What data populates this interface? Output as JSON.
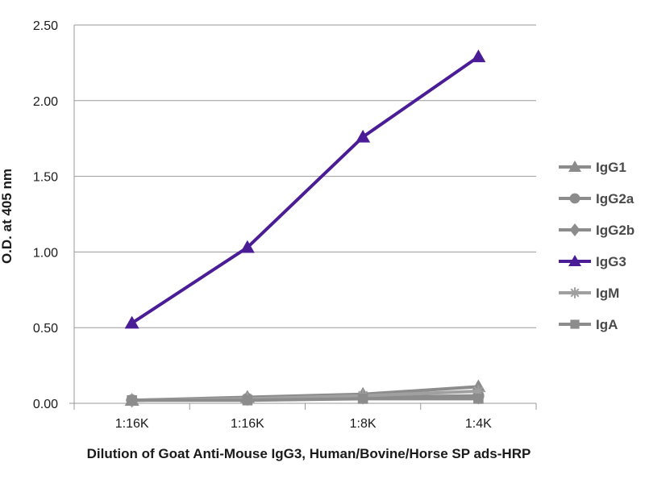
{
  "chart_data": {
    "type": "line",
    "title": "",
    "xlabel": "Dilution of Goat Anti-Mouse IgG3, Human/Bovine/Horse SP ads-HRP",
    "ylabel": "O.D. at 405 nm",
    "categories": [
      "1:16K",
      "1:16K",
      "1:8K",
      "1:4K"
    ],
    "ylim": [
      0,
      2.5
    ],
    "yticks": [
      0,
      0.5,
      1.0,
      1.5,
      2.0,
      2.5
    ],
    "ytick_labels": [
      "0.00",
      "0.50",
      "1.00",
      "1.50",
      "2.00",
      "2.50"
    ],
    "grid": true,
    "legend_position": "right",
    "series": [
      {
        "name": "IgG1",
        "values": [
          0.02,
          0.04,
          0.06,
          0.11
        ],
        "color": "#8c8c8c",
        "marker": "triangle"
      },
      {
        "name": "IgG2a",
        "values": [
          0.02,
          0.03,
          0.04,
          0.05
        ],
        "color": "#8c8c8c",
        "marker": "circle"
      },
      {
        "name": "IgG2b",
        "values": [
          0.02,
          0.03,
          0.04,
          0.04
        ],
        "color": "#8c8c8c",
        "marker": "diamond"
      },
      {
        "name": "IgG3",
        "values": [
          0.53,
          1.03,
          1.76,
          2.29
        ],
        "color": "#4a1d96",
        "marker": "triangle"
      },
      {
        "name": "IgM",
        "values": [
          0.02,
          0.03,
          0.05,
          0.08
        ],
        "color": "#a0a0a0",
        "marker": "star"
      },
      {
        "name": "IgA",
        "values": [
          0.02,
          0.02,
          0.03,
          0.03
        ],
        "color": "#8c8c8c",
        "marker": "square"
      }
    ]
  }
}
